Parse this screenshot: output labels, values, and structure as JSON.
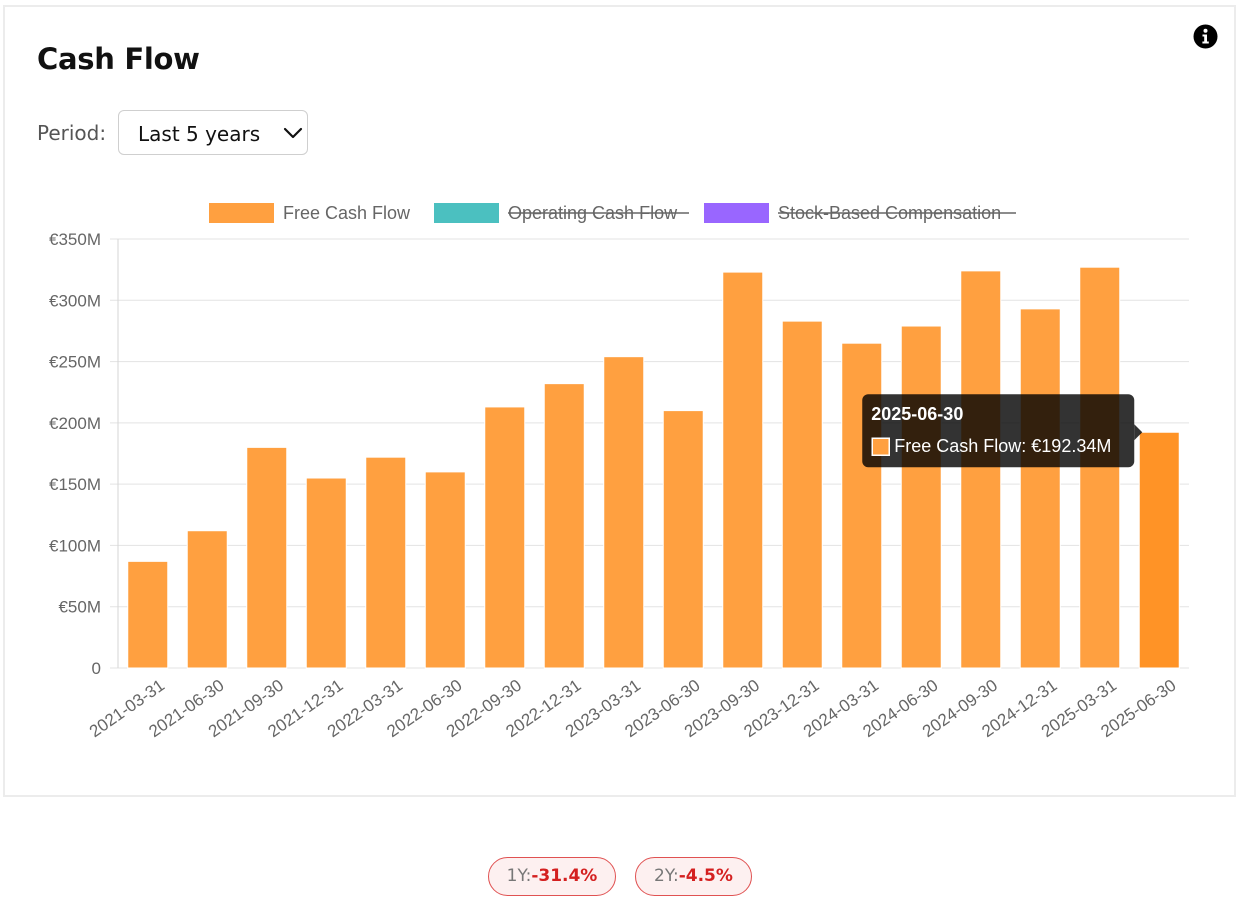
{
  "header": {
    "title": "Cash Flow",
    "period_label": "Period:",
    "period_value": "Last 5 years"
  },
  "legend": [
    {
      "name": "Free Cash Flow",
      "color": "#ffa040",
      "hidden": false
    },
    {
      "name": "Operating Cash Flow",
      "color": "#4bc0c0",
      "hidden": true
    },
    {
      "name": "Stock-Based Compensation",
      "color": "#9966ff",
      "hidden": true
    }
  ],
  "tooltip": {
    "title": "2025-06-30",
    "label": "Free Cash Flow: €192.34M",
    "color": "#ffa040"
  },
  "chart_data": {
    "type": "bar",
    "title": "Cash Flow",
    "xlabel": "",
    "ylabel": "",
    "ylim": [
      0,
      350
    ],
    "yticks": [
      0,
      50,
      100,
      150,
      200,
      250,
      300,
      350
    ],
    "ytick_labels": [
      "0",
      "€50M",
      "€100M",
      "€150M",
      "€200M",
      "€250M",
      "€300M",
      "€350M"
    ],
    "categories": [
      "2021-03-31",
      "2021-06-30",
      "2021-09-30",
      "2021-12-31",
      "2022-03-31",
      "2022-06-30",
      "2022-09-30",
      "2022-12-31",
      "2023-03-31",
      "2023-06-30",
      "2023-09-30",
      "2023-12-31",
      "2024-03-31",
      "2024-06-30",
      "2024-09-30",
      "2024-12-31",
      "2025-03-31",
      "2025-06-30"
    ],
    "series": [
      {
        "name": "Free Cash Flow",
        "values": [
          87,
          112,
          180,
          155,
          172,
          160,
          213,
          232,
          254,
          210,
          323,
          283,
          265,
          279,
          324,
          293,
          327,
          192.34
        ]
      }
    ],
    "highlighted_index": 17,
    "legend_position": "top-center"
  },
  "returns": [
    {
      "label": "1Y:",
      "value": "-31.4%"
    },
    {
      "label": "2Y:",
      "value": "-4.5%"
    }
  ]
}
